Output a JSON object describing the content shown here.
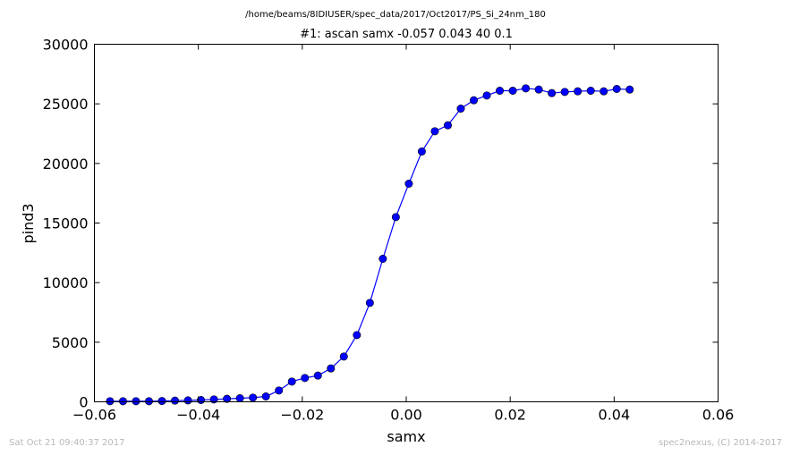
{
  "header": {
    "path": "/home/beams/8IDIUSER/spec_data/2017/Oct2017/PS_Si_24nm_180",
    "scan_title": "#1: ascan  samx -0.057 0.043  40 0.1"
  },
  "footer": {
    "timestamp": "Sat Oct 21 09:40:37 2017",
    "credit": "spec2nexus, (C) 2014-2017"
  },
  "chart_data": {
    "type": "line",
    "suptitle": "/home/beams/8IDIUSER/spec_data/2017/Oct2017/PS_Si_24nm_180",
    "title": "#1: ascan  samx -0.057 0.043  40 0.1",
    "xlabel": "samx",
    "ylabel": "pind3",
    "xlim": [
      -0.06,
      0.06
    ],
    "ylim": [
      0,
      30000
    ],
    "xticks": [
      -0.06,
      -0.04,
      -0.02,
      0.0,
      0.02,
      0.04,
      0.06
    ],
    "xtick_labels": [
      "−0.06",
      "−0.04",
      "−0.02",
      "0.00",
      "0.02",
      "0.04",
      "0.06"
    ],
    "yticks": [
      0,
      5000,
      10000,
      15000,
      20000,
      25000,
      30000
    ],
    "ytick_labels": [
      "0",
      "5000",
      "10000",
      "15000",
      "20000",
      "25000",
      "30000"
    ],
    "grid": false,
    "color": "#0000ff",
    "series": [
      {
        "marker": "circle",
        "x": [
          -0.057,
          -0.0545,
          -0.052,
          -0.0495,
          -0.047,
          -0.0445,
          -0.042,
          -0.0395,
          -0.037,
          -0.0345,
          -0.032,
          -0.0295,
          -0.027,
          -0.0245,
          -0.022,
          -0.0195,
          -0.017,
          -0.0145,
          -0.012,
          -0.0095,
          -0.007,
          -0.0045,
          -0.002,
          0.0005,
          0.003,
          0.0055,
          0.008,
          0.0105,
          0.013,
          0.0155,
          0.018,
          0.0205,
          0.023,
          0.0255,
          0.028,
          0.0305,
          0.033,
          0.0355,
          0.038,
          0.0405,
          0.043
        ],
        "y": [
          50,
          50,
          50,
          50,
          70,
          100,
          120,
          150,
          200,
          250,
          300,
          350,
          450,
          950,
          1700,
          2000,
          2200,
          2800,
          3800,
          5600,
          8300,
          12000,
          15500,
          18300,
          21000,
          22700,
          23200,
          24600,
          25300,
          25700,
          26100,
          26100,
          26300,
          26200,
          25900,
          26000,
          26050,
          26100,
          26050,
          26250,
          26200
        ]
      }
    ]
  }
}
